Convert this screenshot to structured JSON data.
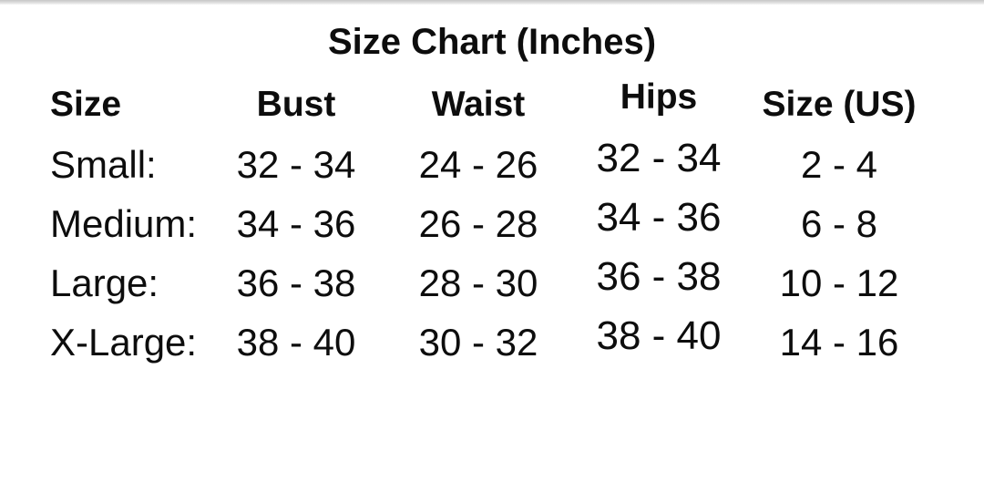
{
  "page": {
    "background_color": "#ffffff",
    "text_color": "#0d0d0d",
    "top_strip_color": "#cccccc"
  },
  "title": "Size Chart (Inches)",
  "chart_data": {
    "type": "table",
    "title": "Size Chart (Inches)",
    "units": "Inches",
    "columns": [
      "Size",
      "Bust",
      "Waist",
      "Hips",
      "Size (US)"
    ],
    "rows": [
      [
        "Small:",
        "32 - 34",
        "24 - 26",
        "32 - 34",
        "2 - 4"
      ],
      [
        "Medium:",
        "34 - 36",
        "26 - 28",
        "34 - 36",
        "6 - 8"
      ],
      [
        "Large:",
        "36 - 38",
        "28 - 30",
        "36 - 38",
        "10 - 12"
      ],
      [
        "X-Large:",
        "38 - 40",
        "30 - 32",
        "38 - 40",
        "14 - 16"
      ]
    ]
  }
}
